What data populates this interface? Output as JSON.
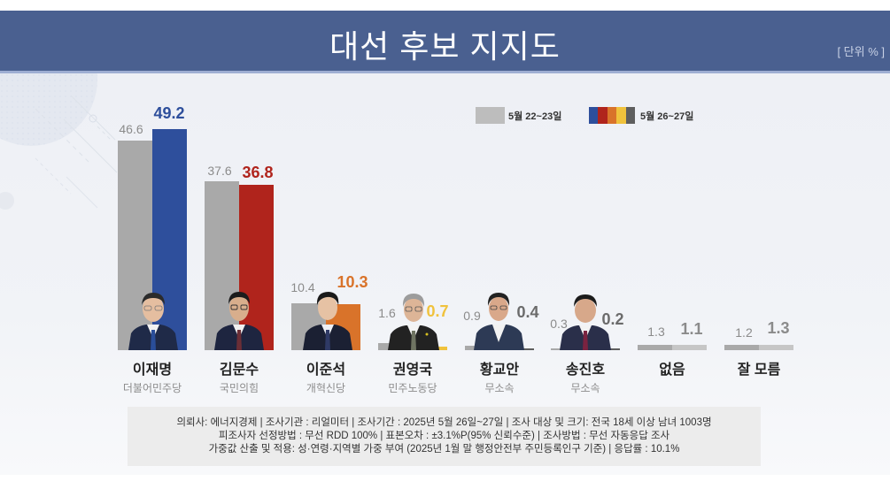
{
  "header": {
    "title": "대선 후보 지지도",
    "unit": "[ 단위 % ]"
  },
  "legend": {
    "prev_label": "5월 22~23일",
    "curr_label": "5월 26~27일",
    "prev_color": "#bdbdbd",
    "curr_colors": [
      "#2e4f9c",
      "#b0241c",
      "#d9732a",
      "#f0c23c",
      "#5e5e5e"
    ]
  },
  "candidates": [
    {
      "name": "이재명",
      "party": "더불어민주당",
      "prev": "46.6",
      "curr": "49.2",
      "color": "#2e4f9c"
    },
    {
      "name": "김문수",
      "party": "국민의힘",
      "prev": "37.6",
      "curr": "36.8",
      "color": "#b0241c"
    },
    {
      "name": "이준석",
      "party": "개혁신당",
      "prev": "10.4",
      "curr": "10.3",
      "color": "#d9732a"
    },
    {
      "name": "권영국",
      "party": "민주노동당",
      "prev": "1.6",
      "curr": "0.7",
      "color": "#f0c23c"
    },
    {
      "name": "황교안",
      "party": "무소속",
      "prev": "0.9",
      "curr": "0.4",
      "color": "#5e5e5e"
    },
    {
      "name": "송진호",
      "party": "무소속",
      "prev": "0.3",
      "curr": "0.2",
      "color": "#5e5e5e"
    },
    {
      "name": "없음",
      "party": "",
      "prev": "1.3",
      "curr": "1.1",
      "color": "#c6c6c6"
    },
    {
      "name": "잘 모름",
      "party": "",
      "prev": "1.2",
      "curr": "1.3",
      "color": "#c6c6c6"
    }
  ],
  "label_colors": {
    "curr_text": [
      "#2e4f9c",
      "#b0241c",
      "#d9732a",
      "#f0c23c",
      "#6b6b6b",
      "#6b6b6b",
      "#8b8b8b",
      "#8b8b8b"
    ]
  },
  "note": {
    "lines": [
      "의뢰사: 에너지경제 | 조사기관 : 리얼미터  |  조사기간 : 2025년 5월 26일~27일 | 조사 대상 및 크기: 전국 18세 이상 남녀 1003명",
      "피조사자 선정방법 : 무선 RDD 100% | 표본오차 : ±3.1%P(95% 신뢰수준) | 조사방법 : 무선 자동응답 조사",
      "가중값 산출 및 적용: 성·연령·지역별 가중 부여 (2025년 1월 말 행정안전부 주민등록인구 기준) | 응답률 : 10.1%"
    ]
  },
  "chart_data": {
    "type": "bar",
    "title": "대선 후보 지지도",
    "unit": "%",
    "categories": [
      "이재명",
      "김문수",
      "이준석",
      "권영국",
      "황교안",
      "송진호",
      "없음",
      "잘 모름"
    ],
    "parties": [
      "더불어민주당",
      "국민의힘",
      "개혁신당",
      "민주노동당",
      "무소속",
      "무소속",
      "",
      ""
    ],
    "series": [
      {
        "name": "5월 22~23일",
        "values": [
          46.6,
          37.6,
          10.4,
          1.6,
          0.9,
          0.3,
          1.3,
          1.2
        ],
        "color": "#a9a9a9"
      },
      {
        "name": "5월 26~27일",
        "values": [
          49.2,
          36.8,
          10.3,
          0.7,
          0.4,
          0.2,
          1.1,
          1.3
        ],
        "colors": [
          "#2e4f9c",
          "#b0241c",
          "#d9732a",
          "#f0c23c",
          "#5e5e5e",
          "#5e5e5e",
          "#c6c6c6",
          "#c6c6c6"
        ]
      }
    ],
    "xlabel": "",
    "ylabel": "",
    "ylim": [
      0,
      55
    ],
    "grid": false,
    "legend_position": "top-right"
  }
}
